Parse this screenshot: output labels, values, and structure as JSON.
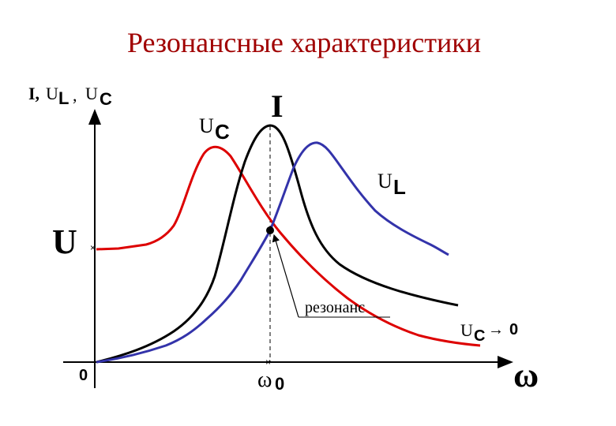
{
  "title": "Резонансные характеристики",
  "y_axis_label": {
    "i": "I,",
    "u_l": "U",
    "u_l_sub": "L",
    "comma": ",",
    "u_c": "U",
    "u_c_sub": "C"
  },
  "x_axis_label": "ω",
  "origin_label": "0",
  "omega0_label": {
    "w": "ω",
    "sub": "0"
  },
  "u_level_label": "U",
  "curve_labels": {
    "current": "I",
    "uc": {
      "main": "U",
      "sub": "C"
    },
    "ul": {
      "main": "U",
      "sub": "L"
    }
  },
  "resonance_label": "резонанс",
  "uc_limit_label": {
    "main": "U",
    "sub": "C",
    "arrow": "→",
    "zero": "0"
  },
  "colors": {
    "title": "#a00000",
    "current": "#000000",
    "uc": "#dd0000",
    "ul": "#3333aa",
    "axes": "#000000"
  }
}
